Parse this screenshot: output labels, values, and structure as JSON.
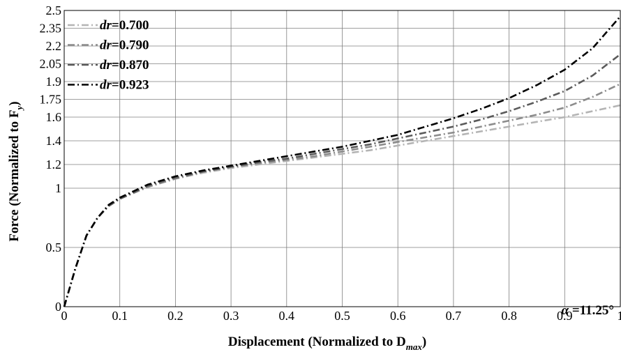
{
  "chart_data": {
    "type": "line",
    "xlabel": "Displacement (Normalized to D",
    "xlabel_sub": "max",
    "xlabel_close": ")",
    "ylabel": "Force (Normalized to F",
    "ylabel_sub": "y",
    "ylabel_close": ")",
    "xlim": [
      0,
      1
    ],
    "ylim": [
      0,
      2.5
    ],
    "x_ticks": [
      0,
      0.1,
      0.2,
      0.3,
      0.4,
      0.5,
      0.6,
      0.7,
      0.8,
      0.9,
      1
    ],
    "x_tick_labels": [
      "0",
      "0.1",
      "0.2",
      "0.3",
      "0.4",
      "0.5",
      "0.6",
      "0.7",
      "0.8",
      "0.9",
      "1"
    ],
    "y_ticks": [
      0,
      0.5,
      1,
      1.2,
      1.4,
      1.6,
      1.75,
      1.9,
      2.05,
      2.2,
      2.35,
      2.5
    ],
    "y_tick_labels": [
      "0",
      "0.5",
      "1",
      "1.2",
      "1.4",
      "1.6",
      "1.75",
      "1.9",
      "2.05",
      "2.2",
      "2.35",
      "2.5"
    ],
    "grid": true,
    "legend_position": "top-left",
    "annotation": {
      "symbol": "α",
      "text": " =11.25°"
    },
    "series": [
      {
        "name_italic": "dr",
        "name_value": "=0.700",
        "color": "#b4b4b4",
        "x": [
          0,
          0.02,
          0.04,
          0.06,
          0.08,
          0.1,
          0.15,
          0.2,
          0.25,
          0.3,
          0.35,
          0.4,
          0.45,
          0.5,
          0.55,
          0.6,
          0.65,
          0.7,
          0.75,
          0.8,
          0.85,
          0.9,
          0.95,
          1.0
        ],
        "y": [
          0,
          0.32,
          0.6,
          0.75,
          0.85,
          0.91,
          1.01,
          1.08,
          1.13,
          1.17,
          1.2,
          1.23,
          1.26,
          1.29,
          1.32,
          1.36,
          1.4,
          1.44,
          1.48,
          1.52,
          1.56,
          1.6,
          1.65,
          1.7
        ]
      },
      {
        "name_italic": "dr",
        "name_value": "=0.790",
        "color": "#8c8c8c",
        "x": [
          0,
          0.02,
          0.04,
          0.06,
          0.08,
          0.1,
          0.15,
          0.2,
          0.25,
          0.3,
          0.35,
          0.4,
          0.45,
          0.5,
          0.55,
          0.6,
          0.65,
          0.7,
          0.75,
          0.8,
          0.85,
          0.9,
          0.95,
          1.0
        ],
        "y": [
          0,
          0.32,
          0.6,
          0.75,
          0.85,
          0.91,
          1.01,
          1.08,
          1.14,
          1.18,
          1.21,
          1.24,
          1.27,
          1.31,
          1.35,
          1.39,
          1.43,
          1.47,
          1.52,
          1.57,
          1.62,
          1.68,
          1.77,
          1.88
        ]
      },
      {
        "name_italic": "dr",
        "name_value": "=0.870",
        "color": "#5a5a5a",
        "x": [
          0,
          0.02,
          0.04,
          0.06,
          0.08,
          0.1,
          0.15,
          0.2,
          0.25,
          0.3,
          0.35,
          0.4,
          0.45,
          0.5,
          0.55,
          0.6,
          0.65,
          0.7,
          0.75,
          0.8,
          0.85,
          0.9,
          0.95,
          1.0
        ],
        "y": [
          0,
          0.32,
          0.6,
          0.75,
          0.85,
          0.91,
          1.02,
          1.09,
          1.14,
          1.18,
          1.22,
          1.25,
          1.29,
          1.33,
          1.37,
          1.42,
          1.47,
          1.52,
          1.58,
          1.65,
          1.73,
          1.82,
          1.95,
          2.13
        ]
      },
      {
        "name_italic": "dr",
        "name_value": "=0.923",
        "color": "#000000",
        "x": [
          0,
          0.02,
          0.04,
          0.06,
          0.08,
          0.1,
          0.15,
          0.2,
          0.25,
          0.3,
          0.35,
          0.4,
          0.45,
          0.5,
          0.55,
          0.6,
          0.65,
          0.7,
          0.75,
          0.8,
          0.85,
          0.9,
          0.95,
          1.0
        ],
        "y": [
          0,
          0.32,
          0.6,
          0.75,
          0.86,
          0.92,
          1.03,
          1.1,
          1.15,
          1.19,
          1.23,
          1.27,
          1.31,
          1.35,
          1.4,
          1.45,
          1.52,
          1.59,
          1.67,
          1.76,
          1.87,
          2.0,
          2.18,
          2.45
        ]
      }
    ]
  }
}
